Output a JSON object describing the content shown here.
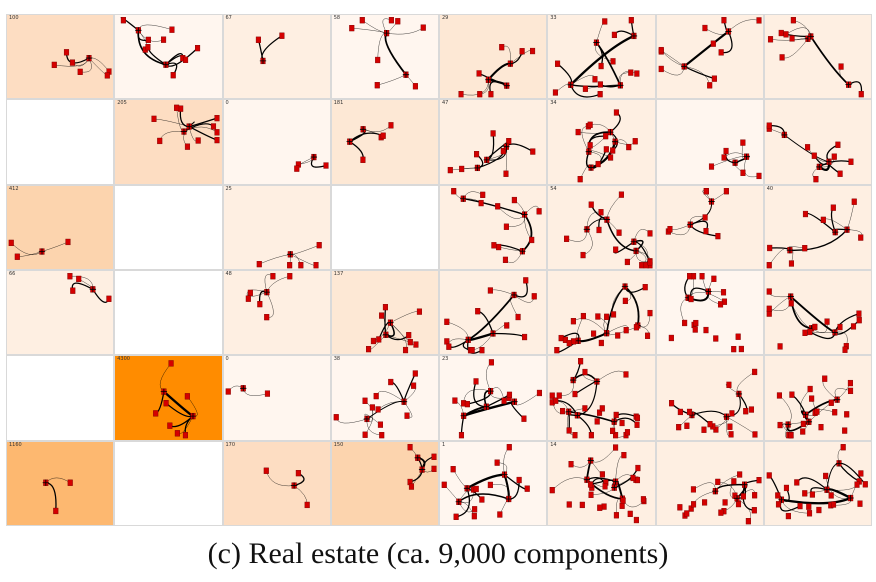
{
  "caption": "(c)  Real estate (ca. 9,000 components)",
  "colors": {
    "none": "#ffffff",
    "l1": "#fff6ef",
    "l2": "#feefe2",
    "l3": "#fde8d5",
    "l4": "#fdddc2",
    "l5": "#fcd4ae",
    "l6": "#fdb870",
    "l7": "#ff8c00",
    "node": "#d40000",
    "edge": "#000000",
    "grid": "#d9d9d9"
  },
  "grid": {
    "rows": 6,
    "cols": 8,
    "cells": [
      {
        "tint": "l4",
        "count": "100"
      },
      {
        "tint": "l1",
        "count": ""
      },
      {
        "tint": "l2",
        "count": "67"
      },
      {
        "tint": "l1",
        "count": "58"
      },
      {
        "tint": "l3",
        "count": "29"
      },
      {
        "tint": "l2",
        "count": "33"
      },
      {
        "tint": "l2",
        "count": ""
      },
      {
        "tint": "l2",
        "count": ""
      },
      {
        "tint": "none",
        "count": ""
      },
      {
        "tint": "l4",
        "count": "205"
      },
      {
        "tint": "l1",
        "count": "0"
      },
      {
        "tint": "l3",
        "count": "181"
      },
      {
        "tint": "l2",
        "count": "47"
      },
      {
        "tint": "l2",
        "count": "34"
      },
      {
        "tint": "l1",
        "count": ""
      },
      {
        "tint": "l2",
        "count": ""
      },
      {
        "tint": "l5",
        "count": "412"
      },
      {
        "tint": "none",
        "count": ""
      },
      {
        "tint": "l2",
        "count": "25"
      },
      {
        "tint": "none",
        "count": ""
      },
      {
        "tint": "l2",
        "count": ""
      },
      {
        "tint": "l2",
        "count": "54"
      },
      {
        "tint": "l2",
        "count": ""
      },
      {
        "tint": "l2",
        "count": "40"
      },
      {
        "tint": "l2",
        "count": "66"
      },
      {
        "tint": "none",
        "count": ""
      },
      {
        "tint": "l2",
        "count": "48"
      },
      {
        "tint": "l3",
        "count": "137"
      },
      {
        "tint": "l2",
        "count": ""
      },
      {
        "tint": "l2",
        "count": ""
      },
      {
        "tint": "l1",
        "count": ""
      },
      {
        "tint": "l2",
        "count": ""
      },
      {
        "tint": "none",
        "count": ""
      },
      {
        "tint": "l7",
        "count": "4300"
      },
      {
        "tint": "l1",
        "count": "0"
      },
      {
        "tint": "l1",
        "count": "38"
      },
      {
        "tint": "l1",
        "count": "23"
      },
      {
        "tint": "l2",
        "count": ""
      },
      {
        "tint": "l2",
        "count": ""
      },
      {
        "tint": "l2",
        "count": ""
      },
      {
        "tint": "l6",
        "count": "1160"
      },
      {
        "tint": "none",
        "count": ""
      },
      {
        "tint": "l4",
        "count": "170"
      },
      {
        "tint": "l5",
        "count": "150"
      },
      {
        "tint": "l1",
        "count": "1"
      },
      {
        "tint": "l2",
        "count": "14"
      },
      {
        "tint": "l2",
        "count": ""
      },
      {
        "tint": "l2",
        "count": ""
      }
    ]
  }
}
